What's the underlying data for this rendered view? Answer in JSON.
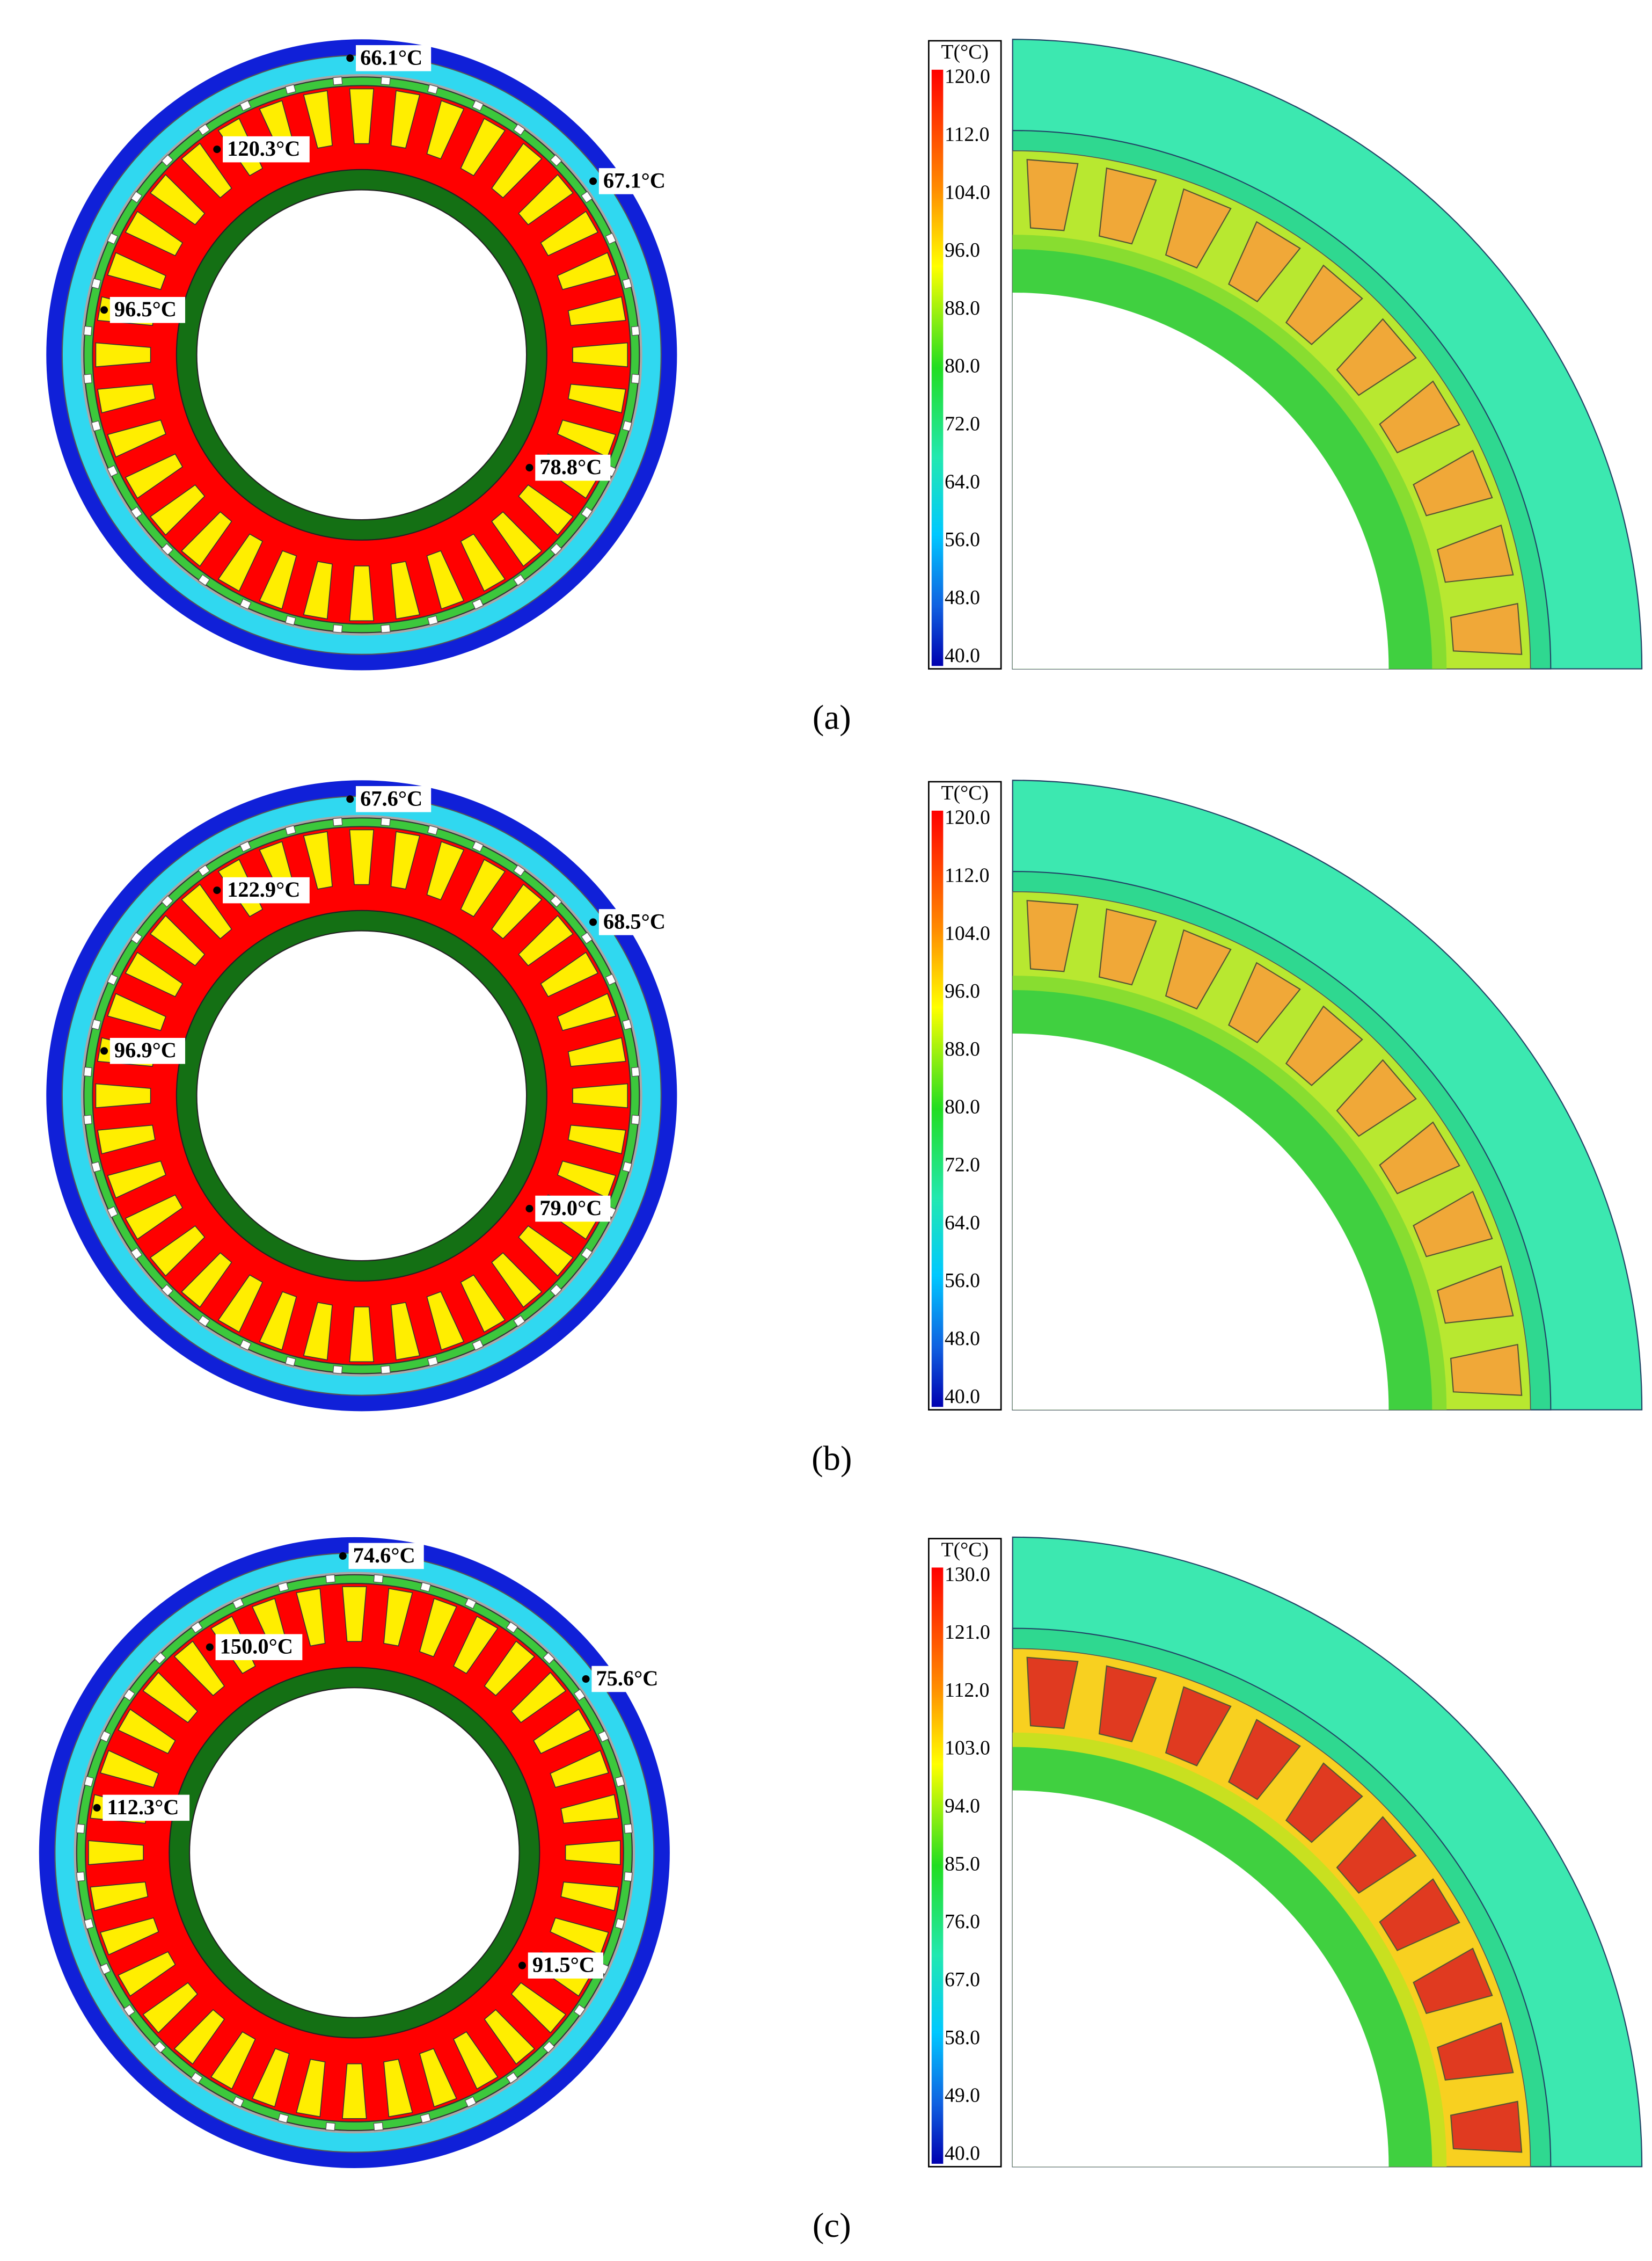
{
  "panels": [
    {
      "label": "(a)",
      "points": [
        "66.1°C",
        "120.3°C",
        "67.1°C",
        "96.5°C",
        "78.8°C"
      ],
      "legend_title": "T(°C)",
      "legend_ticks": [
        "120.0",
        "112.0",
        "104.0",
        "96.0",
        "88.0",
        "80.0",
        "72.0",
        "64.0",
        "56.0",
        "48.0",
        "40.0"
      ]
    },
    {
      "label": "(b)",
      "points": [
        "67.6°C",
        "122.9°C",
        "68.5°C",
        "96.9°C",
        "79.0°C"
      ],
      "legend_title": "T(°C)",
      "legend_ticks": [
        "120.0",
        "112.0",
        "104.0",
        "96.0",
        "88.0",
        "80.0",
        "72.0",
        "64.0",
        "56.0",
        "48.0",
        "40.0"
      ]
    },
    {
      "label": "(c)",
      "points": [
        "74.6°C",
        "150.0°C",
        "75.6°C",
        "112.3°C",
        "91.5°C"
      ],
      "legend_title": "T(°C)",
      "legend_ticks": [
        "130.0",
        "121.0",
        "112.0",
        "103.0",
        "94.0",
        "85.0",
        "76.0",
        "67.0",
        "58.0",
        "49.0",
        "40.0"
      ]
    }
  ]
}
